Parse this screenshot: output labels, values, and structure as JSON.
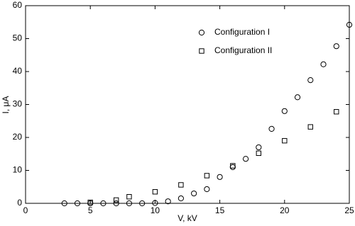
{
  "chart_data": {
    "type": "scatter",
    "x_label": "V, kV",
    "y_label": "I, μA",
    "xlim": [
      0,
      25
    ],
    "xticks": [
      0,
      5,
      10,
      15,
      20,
      25
    ],
    "ylim": [
      0,
      60
    ],
    "yticks": [
      0,
      10,
      20,
      30,
      40,
      50,
      60
    ],
    "grid": false,
    "legend": "upper-right",
    "series": [
      {
        "name": "Configuration I",
        "color": "#000000",
        "marker": "circle",
        "x": [
          3,
          4,
          5,
          6,
          7,
          8,
          9,
          10,
          11,
          12,
          13,
          14,
          15,
          16,
          17,
          18,
          19,
          20,
          21,
          22,
          23,
          24,
          25
        ],
        "values": [
          0,
          0,
          0,
          0,
          0,
          0,
          0,
          0.1,
          0.6,
          1.5,
          3,
          4.3,
          8,
          11,
          13.5,
          17,
          22.6,
          28,
          32.2,
          37.4,
          42.2,
          47.7,
          54.2
        ]
      },
      {
        "name": "Configuration II",
        "color": "#000000",
        "marker": "square",
        "x": [
          5,
          7,
          8,
          10,
          12,
          14,
          16,
          18,
          20,
          22,
          24
        ],
        "values": [
          0.3,
          1,
          2,
          3.5,
          5.6,
          8.4,
          11.4,
          15.2,
          19,
          23.2,
          27.8
        ]
      }
    ]
  }
}
